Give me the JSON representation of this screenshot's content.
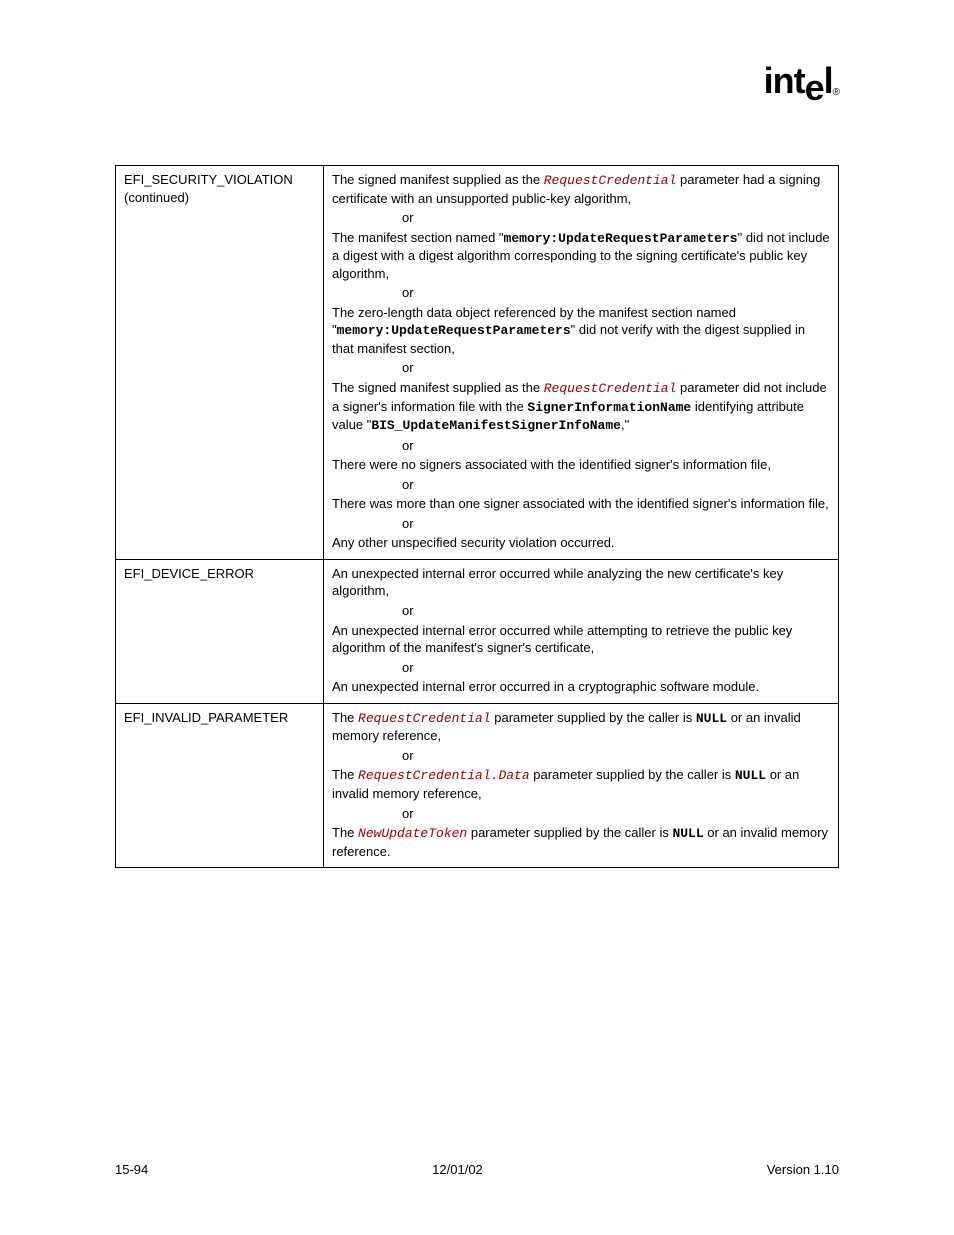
{
  "logo": {
    "text": "intel",
    "subscript": "®"
  },
  "table": {
    "rows": [
      {
        "label": "EFI_SECURITY_VIOLATION",
        "labelSub": "(continued)",
        "paras": [
          {
            "runs": [
              {
                "t": "The signed manifest supplied as the "
              },
              {
                "t": "RequestCredential",
                "c": "code-red"
              },
              {
                "t": " parameter had a signing certificate with an unsupported public-key algorithm,"
              }
            ]
          },
          {
            "or": true
          },
          {
            "runs": [
              {
                "t": "The manifest section named \""
              },
              {
                "t": "memory:UpdateRequestParameters",
                "c": "code-black"
              },
              {
                "t": "\" did not include a digest with a digest algorithm corresponding to the signing certificate's public key algorithm,"
              }
            ]
          },
          {
            "or": true
          },
          {
            "runs": [
              {
                "t": "The zero-length data object referenced by the manifest section named \""
              },
              {
                "t": "memory:UpdateRequestParameters",
                "c": "code-black"
              },
              {
                "t": "\" did not verify with the digest supplied in that manifest section,"
              }
            ]
          },
          {
            "or": true
          },
          {
            "runs": [
              {
                "t": "The signed manifest supplied as the "
              },
              {
                "t": "RequestCredential",
                "c": "code-red"
              },
              {
                "t": " parameter did not include a signer's information file with the "
              },
              {
                "t": "SignerInformationName",
                "c": "code-black"
              },
              {
                "t": " identifying attribute value \""
              },
              {
                "t": "BIS_UpdateManifestSignerInfoName",
                "c": "code-black"
              },
              {
                "t": ",\""
              }
            ]
          },
          {
            "or": true
          },
          {
            "runs": [
              {
                "t": "There were no signers associated with the identified signer's information file,"
              }
            ]
          },
          {
            "or": true
          },
          {
            "runs": [
              {
                "t": "There was more than one signer associated with the identified signer's information file,"
              }
            ]
          },
          {
            "or": true
          },
          {
            "runs": [
              {
                "t": "Any other unspecified security violation occurred."
              }
            ]
          }
        ]
      },
      {
        "label": "EFI_DEVICE_ERROR",
        "paras": [
          {
            "runs": [
              {
                "t": "An unexpected internal error occurred while analyzing the new certificate's key algorithm,"
              }
            ]
          },
          {
            "or": true
          },
          {
            "runs": [
              {
                "t": "An unexpected internal error occurred while attempting to retrieve the public key algorithm of the manifest's signer's certificate,"
              }
            ]
          },
          {
            "or": true
          },
          {
            "runs": [
              {
                "t": "An unexpected internal error occurred in a cryptographic software module."
              }
            ]
          }
        ]
      },
      {
        "label": "EFI_INVALID_PARAMETER",
        "paras": [
          {
            "runs": [
              {
                "t": "The "
              },
              {
                "t": "RequestCredential",
                "c": "code-red"
              },
              {
                "t": " parameter supplied by the caller is "
              },
              {
                "t": "NULL",
                "c": "code-black"
              },
              {
                "t": " or an invalid memory reference,"
              }
            ]
          },
          {
            "or": true
          },
          {
            "runs": [
              {
                "t": "The "
              },
              {
                "t": "RequestCredential.Data",
                "c": "code-red"
              },
              {
                "t": " parameter supplied by the caller is "
              },
              {
                "t": "NULL",
                "c": "code-black"
              },
              {
                "t": " or an invalid memory reference,"
              }
            ]
          },
          {
            "or": true
          },
          {
            "runs": [
              {
                "t": "The "
              },
              {
                "t": "NewUpdateToken",
                "c": "code-red"
              },
              {
                "t": " parameter supplied by the caller is "
              },
              {
                "t": "NULL",
                "c": "code-black"
              },
              {
                "t": " or an invalid memory reference."
              }
            ]
          }
        ]
      }
    ]
  },
  "footer": {
    "left": "15-94",
    "center": "12/01/02",
    "right": "Version 1.10"
  },
  "orText": "or"
}
